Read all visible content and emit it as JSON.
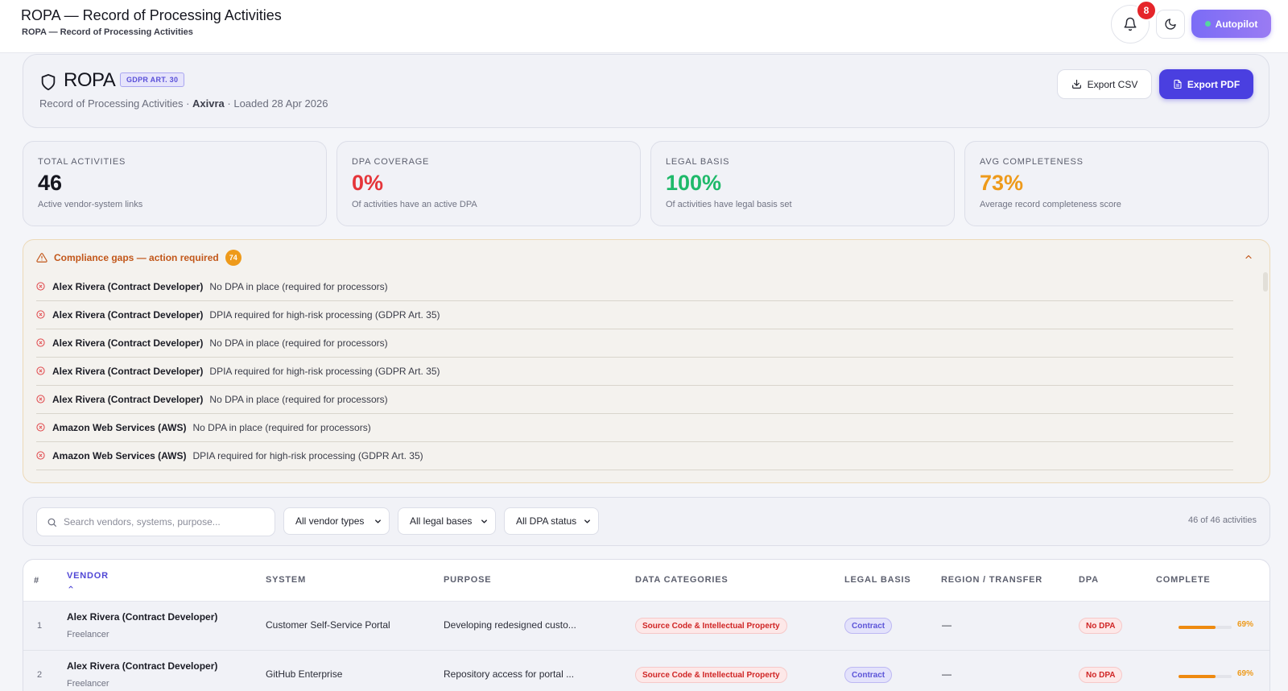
{
  "topbar": {
    "title": "ROPA — Record of Processing Activities",
    "subtitle": "ROPA — Record of Processing Activities",
    "notifications_count": "8",
    "autopilot_label": "Autopilot"
  },
  "header": {
    "title": "ROPA",
    "tag": "GDPR ART. 30",
    "sub_prefix": "Record of Processing Activities · ",
    "org": "Axivra",
    "sub_suffix": " · Loaded 28 Apr 2026",
    "export_csv": "Export CSV",
    "export_pdf": "Export PDF"
  },
  "stats": [
    {
      "label": "TOTAL ACTIVITIES",
      "value": "46",
      "desc": "Active vendor-system links",
      "color": "#15161f"
    },
    {
      "label": "DPA COVERAGE",
      "value": "0%",
      "desc": "Of activities have an active DPA",
      "color": "#e5353a"
    },
    {
      "label": "LEGAL BASIS",
      "value": "100%",
      "desc": "Of activities have legal basis set",
      "color": "#1fb96a"
    },
    {
      "label": "AVG COMPLETENESS",
      "value": "73%",
      "desc": "Average record completeness score",
      "color": "#ee9a1a"
    }
  ],
  "gaps": {
    "title": "Compliance gaps — action required",
    "count": "74",
    "items": [
      {
        "vendor": "Alex Rivera (Contract Developer)",
        "issue": "No DPA in place (required for processors)"
      },
      {
        "vendor": "Alex Rivera (Contract Developer)",
        "issue": "DPIA required for high-risk processing (GDPR Art. 35)"
      },
      {
        "vendor": "Alex Rivera (Contract Developer)",
        "issue": "No DPA in place (required for processors)"
      },
      {
        "vendor": "Alex Rivera (Contract Developer)",
        "issue": "DPIA required for high-risk processing (GDPR Art. 35)"
      },
      {
        "vendor": "Alex Rivera (Contract Developer)",
        "issue": "No DPA in place (required for processors)"
      },
      {
        "vendor": "Amazon Web Services (AWS)",
        "issue": "No DPA in place (required for processors)"
      },
      {
        "vendor": "Amazon Web Services (AWS)",
        "issue": "DPIA required for high-risk processing (GDPR Art. 35)"
      }
    ]
  },
  "filters": {
    "search_placeholder": "Search vendors, systems, purpose...",
    "vendor_type": "All vendor types",
    "legal_basis": "All legal bases",
    "dpa_status": "All DPA status",
    "count_text": "46 of 46 activities"
  },
  "table": {
    "headers": {
      "num": "#",
      "vendor": "VENDOR",
      "system": "SYSTEM",
      "purpose": "PURPOSE",
      "categories": "DATA CATEGORIES",
      "legal": "LEGAL BASIS",
      "region": "REGION / TRANSFER",
      "dpa": "DPA",
      "complete": "COMPLETE"
    },
    "rows": [
      {
        "num": "1",
        "vendor": "Alex Rivera (Contract Developer)",
        "type": "Freelancer",
        "system": "Customer Self-Service Portal",
        "purpose": "Developing redesigned custo...",
        "category": "Source Code & Intellectual Property",
        "legal": "Contract",
        "region": "—",
        "dpa": "No DPA",
        "complete": 0.69,
        "complete_label": "69%"
      },
      {
        "num": "2",
        "vendor": "Alex Rivera (Contract Developer)",
        "type": "Freelancer",
        "system": "GitHub Enterprise",
        "purpose": "Repository access for portal ...",
        "category": "Source Code & Intellectual Property",
        "legal": "Contract",
        "region": "—",
        "dpa": "No DPA",
        "complete": 0.69,
        "complete_label": "69%"
      }
    ]
  }
}
